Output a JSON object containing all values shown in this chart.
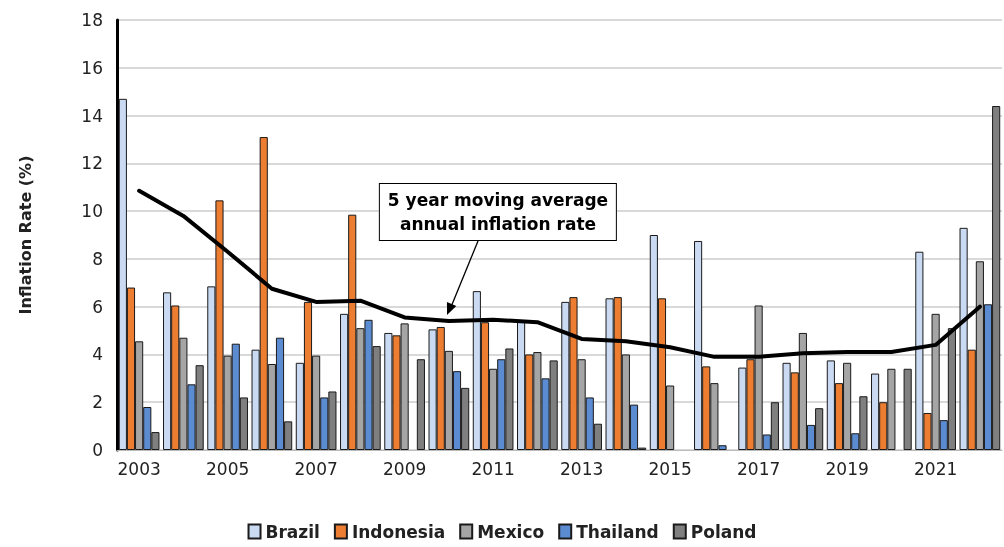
{
  "chart_data": {
    "type": "bar",
    "ylabel": "Inflation Rate (%)",
    "categories": [
      "2003",
      null,
      "2005",
      null,
      "2007",
      null,
      "2009",
      null,
      "2011",
      null,
      "2013",
      null,
      "2015",
      null,
      "2017",
      null,
      "2019",
      null,
      "2021",
      null
    ],
    "series": [
      {
        "name": "Brazil",
        "color": "#c9daf2",
        "values": [
          14.7,
          6.6,
          6.85,
          4.2,
          3.65,
          5.7,
          4.9,
          5.05,
          6.65,
          5.4,
          6.2,
          6.35,
          9.0,
          8.75,
          3.45,
          3.65,
          3.75,
          3.2,
          8.3,
          9.3
        ]
      },
      {
        "name": "Indonesia",
        "color": "#ed7d31",
        "values": [
          6.8,
          6.05,
          10.45,
          13.1,
          6.2,
          9.85,
          4.8,
          5.15,
          5.35,
          4.0,
          6.4,
          6.4,
          6.35,
          3.5,
          3.8,
          3.25,
          2.8,
          2.0,
          1.55,
          4.2
        ]
      },
      {
        "name": "Mexico",
        "color": "#a5a5a5",
        "values": [
          4.55,
          4.7,
          3.95,
          3.6,
          3.95,
          5.1,
          5.3,
          4.15,
          3.4,
          4.1,
          3.8,
          4.0,
          2.7,
          2.8,
          6.05,
          4.9,
          3.65,
          3.4,
          5.7,
          7.9
        ]
      },
      {
        "name": "Thailand",
        "color": "#5b8bd0",
        "values": [
          1.8,
          2.75,
          4.45,
          4.7,
          2.2,
          5.45,
          null,
          3.3,
          3.8,
          3.0,
          2.2,
          1.9,
          null,
          0.2,
          0.65,
          1.05,
          0.7,
          null,
          1.25,
          6.1
        ]
      },
      {
        "name": "Poland",
        "color": "#7f7f7f",
        "values": [
          0.75,
          3.55,
          2.2,
          1.2,
          2.45,
          4.35,
          3.8,
          2.6,
          4.25,
          3.75,
          1.1,
          0.1,
          null,
          null,
          2.0,
          1.75,
          2.25,
          3.4,
          5.1,
          14.4
        ]
      },
      {
        "type": "line",
        "color": "#000000",
        "values": [
          10.85,
          9.8,
          8.3,
          6.75,
          6.2,
          6.25,
          5.55,
          5.4,
          5.45,
          5.35,
          4.65,
          4.55,
          4.3,
          3.9,
          3.9,
          4.05,
          4.1,
          4.1,
          4.4,
          6.0
        ]
      }
    ],
    "ylim": [
      0,
      18
    ],
    "yticks": [
      0,
      2,
      4,
      6,
      8,
      10,
      12,
      14,
      16,
      18
    ],
    "grid": "y",
    "legend": "bottom",
    "marker": "none",
    "annotations": [
      "5 year moving average\nannual inflation rate"
    ]
  }
}
